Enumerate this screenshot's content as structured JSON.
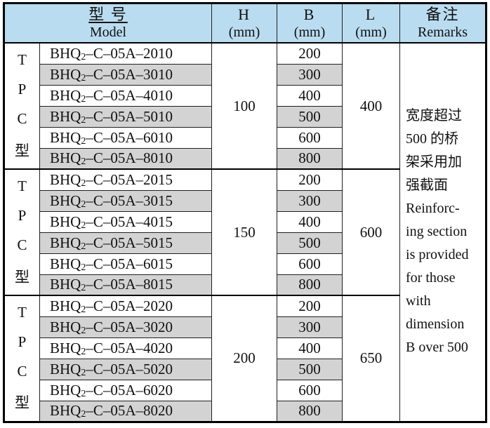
{
  "table": {
    "header": {
      "model_zh": "型 号",
      "model_en": "Model",
      "h_label": "H",
      "h_unit": "(mm)",
      "b_label": "B",
      "b_unit": "(mm)",
      "l_label": "L",
      "l_unit": "(mm)",
      "remarks_zh": "备注",
      "remarks_en": "Remarks"
    },
    "type_label_chars": [
      "T",
      "P",
      "C",
      "型"
    ],
    "groups": [
      {
        "h": "100",
        "l": "400",
        "models": [
          "BHQ2–C–05A–2010",
          "BHQ2–C–05A–3010",
          "BHQ2–C–05A–4010",
          "BHQ2–C–05A–5010",
          "BHQ2–C–05A–6010",
          "BHQ2–C–05A–8010"
        ],
        "b_values": [
          "200",
          "300",
          "400",
          "500",
          "600",
          "800"
        ]
      },
      {
        "h": "150",
        "l": "600",
        "models": [
          "BHQ2–C–05A–2015",
          "BHQ2–C–05A–3015",
          "BHQ2–C–05A–4015",
          "BHQ2–C–05A–5015",
          "BHQ2–C–05A–6015",
          "BHQ2–C–05A–8015"
        ],
        "b_values": [
          "200",
          "300",
          "400",
          "500",
          "600",
          "800"
        ]
      },
      {
        "h": "200",
        "l": "650",
        "models": [
          "BHQ2–C–05A–2020",
          "BHQ2–C–05A–3020",
          "BHQ2–C–05A–4020",
          "BHQ2–C–05A–5020",
          "BHQ2–C–05A–6020",
          "BHQ2–C–05A–8020"
        ],
        "b_values": [
          "200",
          "300",
          "400",
          "500",
          "600",
          "800"
        ]
      }
    ],
    "remarks_lines": [
      "宽度超过",
      "500 的桥",
      "架采用加",
      "强截面",
      "Reinforc-",
      "ing section",
      "is provided",
      "for those",
      "with",
      "dimension",
      "B over 500"
    ]
  },
  "colors": {
    "header_bg": "#badcf0",
    "stripe_bg": "#d3d3d3",
    "border": "#000000"
  }
}
